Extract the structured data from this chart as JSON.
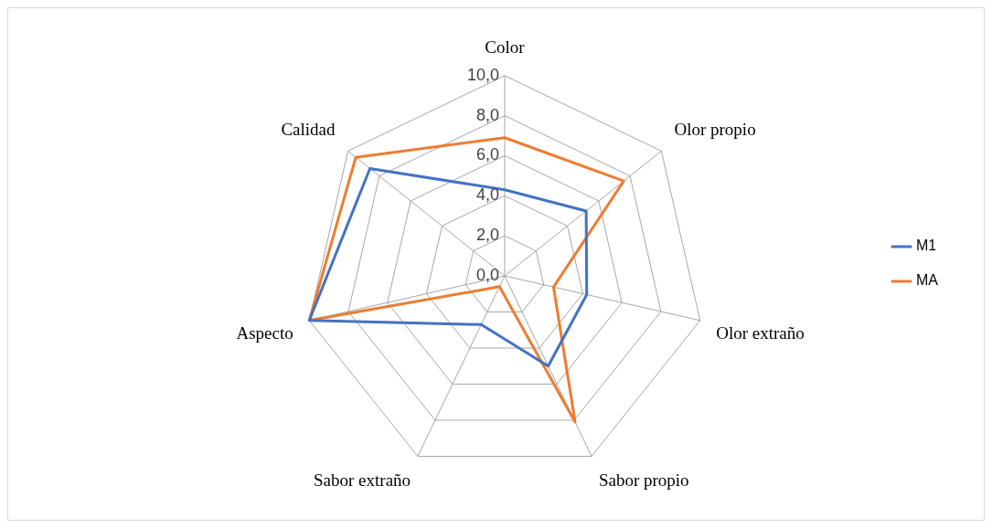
{
  "chart_data": {
    "type": "radar",
    "categories": [
      "Color",
      "Olor propio",
      "Olor extraño",
      "Sabor propio",
      "Sabor extraño",
      "Aspecto",
      "Calidad"
    ],
    "series": [
      {
        "name": "M1",
        "color": "#4472c4",
        "values": [
          4.3,
          5.2,
          4.2,
          5.0,
          2.7,
          10.0,
          8.6
        ]
      },
      {
        "name": "MA",
        "color": "#ed7d31",
        "values": [
          6.9,
          7.6,
          2.5,
          8.1,
          0.6,
          10.0,
          9.5
        ]
      }
    ],
    "ylim": [
      0,
      10
    ],
    "yticks": [
      {
        "value": 0,
        "label": "0,0"
      },
      {
        "value": 2,
        "label": "2,0"
      },
      {
        "value": 4,
        "label": "4,0"
      },
      {
        "value": 6,
        "label": "6,0"
      },
      {
        "value": 8,
        "label": "8,0"
      },
      {
        "value": 10,
        "label": "10,0"
      }
    ],
    "grid": true,
    "legend": "right",
    "marker": "none",
    "line_style": "solid"
  }
}
